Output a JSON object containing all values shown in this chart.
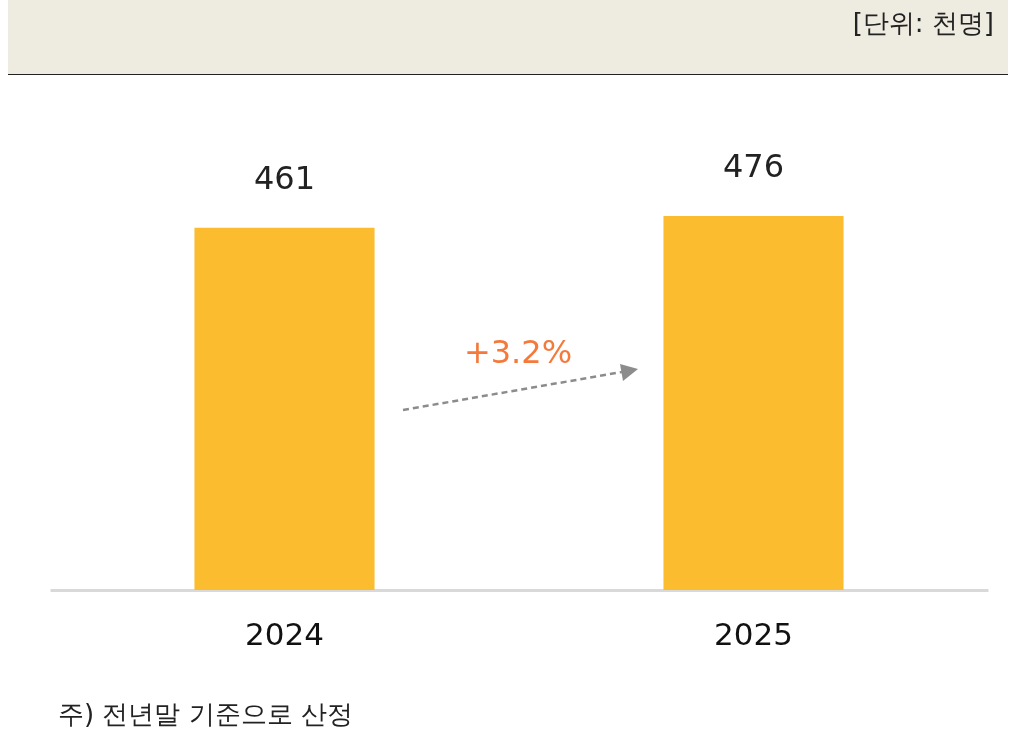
{
  "chart_data": {
    "type": "bar",
    "categories": [
      "2024",
      "2025"
    ],
    "values": [
      461,
      476
    ],
    "color": "#fbbc2f",
    "data_labels": true,
    "annotations": [
      "[단위: 천명]",
      "+3.2%",
      "주) 전년말 기준으로 산정"
    ]
  }
}
